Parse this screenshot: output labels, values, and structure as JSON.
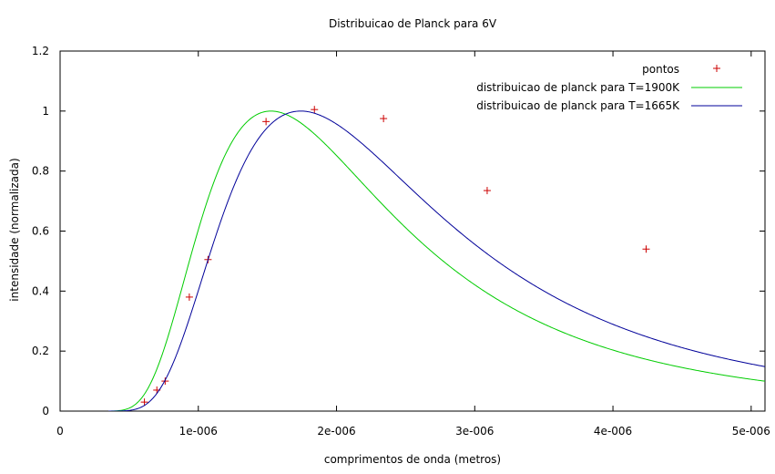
{
  "chart_data": {
    "type": "line",
    "title": "Distribuicao de Planck para 6V",
    "xlabel": "comprimentos de onda (metros)",
    "ylabel": "intensidade (normalizada)",
    "xlim": [
      0,
      5.1e-06
    ],
    "ylim": [
      0,
      1.2
    ],
    "x_ticks": [
      {
        "value": 0,
        "label": "0"
      },
      {
        "value": 1e-06,
        "label": "1e-006"
      },
      {
        "value": 2e-06,
        "label": "2e-006"
      },
      {
        "value": 3e-06,
        "label": "3e-006"
      },
      {
        "value": 4e-06,
        "label": "4e-006"
      },
      {
        "value": 5e-06,
        "label": "5e-006"
      }
    ],
    "y_ticks": [
      {
        "value": 0,
        "label": "0"
      },
      {
        "value": 0.2,
        "label": "0.2"
      },
      {
        "value": 0.4,
        "label": "0.4"
      },
      {
        "value": 0.6,
        "label": "0.6"
      },
      {
        "value": 0.8,
        "label": "0.8"
      },
      {
        "value": 1,
        "label": "1"
      },
      {
        "value": 1.2,
        "label": "1.2"
      }
    ],
    "grid": false,
    "legend_position": "top-right",
    "series": [
      {
        "name": "pontos",
        "type": "scatter",
        "marker": "plus",
        "color": "#cc0000",
        "points": [
          {
            "x": 6.1e-07,
            "y": 0.03
          },
          {
            "x": 7e-07,
            "y": 0.07
          },
          {
            "x": 7.6e-07,
            "y": 0.1
          },
          {
            "x": 9.35e-07,
            "y": 0.38
          },
          {
            "x": 1.07e-06,
            "y": 0.505
          },
          {
            "x": 1.49e-06,
            "y": 0.965
          },
          {
            "x": 1.84e-06,
            "y": 1.005
          },
          {
            "x": 2.34e-06,
            "y": 0.975
          },
          {
            "x": 3.09e-06,
            "y": 0.735
          },
          {
            "x": 4.24e-06,
            "y": 0.54
          }
        ]
      },
      {
        "name": "distribuicao de planck para T=1900K",
        "type": "line",
        "color": "#00cc00",
        "temperature_K": 1900
      },
      {
        "name": "distribuicao de planck para T=1665K",
        "type": "line",
        "color": "#000099",
        "temperature_K": 1665
      }
    ]
  }
}
